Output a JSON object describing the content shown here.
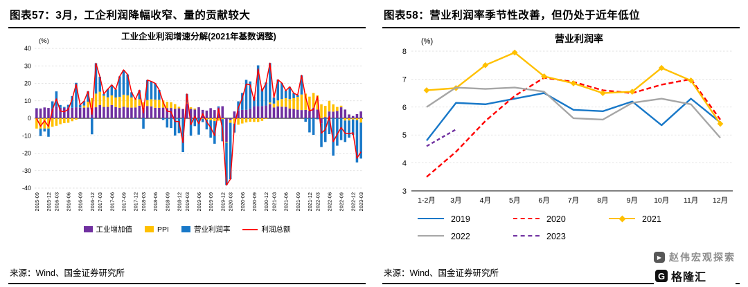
{
  "left_panel": {
    "figure_title": "图表57：3月，工企利润降幅收窄、量的贡献较大",
    "source": "来源：Wind、国金证券研究所"
  },
  "right_panel": {
    "figure_title": "图表58：营业利润率季节性改善，但仍处于近年低位",
    "source": "来源：Wind、国金证券研究所",
    "watermark": {
      "text": "赵伟宏观探索",
      "logo_letter": "G",
      "logo_text": "格隆汇"
    }
  },
  "chart_data": [
    {
      "type": "bar",
      "stacked": true,
      "title": "工业企业利润增速分解(2021年基数调整)",
      "unit": "(%)",
      "ylim": [
        -40,
        40
      ],
      "ytick_step": 10,
      "yticks": [
        -40,
        -30,
        -20,
        -10,
        0,
        10,
        20,
        30,
        40
      ],
      "grid": true,
      "legend_position": "bottom",
      "x": [
        "2015-09",
        "2015-10",
        "2015-11",
        "2015-12",
        "2016-02",
        "2016-03",
        "2016-04",
        "2016-05",
        "2016-06",
        "2016-07",
        "2016-08",
        "2016-09",
        "2016-10",
        "2016-11",
        "2016-12",
        "2017-02",
        "2017-03",
        "2017-04",
        "2017-05",
        "2017-06",
        "2017-07",
        "2017-08",
        "2017-09",
        "2017-10",
        "2017-11",
        "2017-12",
        "2018-02",
        "2018-03",
        "2018-04",
        "2018-05",
        "2018-06",
        "2018-07",
        "2018-08",
        "2018-09",
        "2018-10",
        "2018-11",
        "2018-12",
        "2019-02",
        "2019-03",
        "2019-04",
        "2019-05",
        "2019-06",
        "2019-07",
        "2019-08",
        "2019-09",
        "2019-10",
        "2019-11",
        "2019-12",
        "2020-02",
        "2020-03",
        "2020-04",
        "2020-05",
        "2020-06",
        "2020-07",
        "2020-08",
        "2020-09",
        "2020-10",
        "2020-11",
        "2020-12",
        "2021-02",
        "2021-03",
        "2021-04",
        "2021-05",
        "2021-06",
        "2021-07",
        "2021-08",
        "2021-09",
        "2021-10",
        "2021-11",
        "2021-12",
        "2022-02",
        "2022-03",
        "2022-04",
        "2022-05",
        "2022-06",
        "2022-07",
        "2022-08",
        "2022-09",
        "2022-10",
        "2022-11",
        "2022-12",
        "2023-02",
        "2023-03"
      ],
      "xticks": [
        "2015-09",
        "2015-12",
        "2016-03",
        "2016-06",
        "2016-09",
        "2016-12",
        "2017-03",
        "2017-06",
        "2017-09",
        "2017-12",
        "2018-03",
        "2018-06",
        "2018-09",
        "2018-12",
        "2019-03",
        "2019-06",
        "2019-09",
        "2019-12",
        "2020-03",
        "2020-06",
        "2020-09",
        "2020-12",
        "2021-03",
        "2021-06",
        "2021-09",
        "2021-12",
        "2022-03",
        "2022-06",
        "2022-09",
        "2022-12",
        "2023-03"
      ],
      "series": [
        {
          "name": "工业增加值",
          "type": "bar",
          "color": "#7030A0",
          "values": [
            5.7,
            5.6,
            6.2,
            5.9,
            5.4,
            6.8,
            6.0,
            6.0,
            6.2,
            6.0,
            6.3,
            6.1,
            6.1,
            6.2,
            6.0,
            6.3,
            7.6,
            6.5,
            6.5,
            7.6,
            6.4,
            6.0,
            6.6,
            6.2,
            6.1,
            6.2,
            7.2,
            6.0,
            7.0,
            6.8,
            6.0,
            6.0,
            6.1,
            5.8,
            5.9,
            5.4,
            5.7,
            5.3,
            8.5,
            5.4,
            5.0,
            6.3,
            4.8,
            4.4,
            5.8,
            4.7,
            6.2,
            6.9,
            -13.5,
            -1.1,
            3.9,
            4.4,
            4.8,
            4.8,
            5.6,
            6.9,
            6.9,
            7.0,
            7.3,
            8.1,
            6.2,
            6.8,
            6.6,
            6.5,
            5.6,
            5.3,
            4.9,
            4.7,
            4.8,
            4.3,
            5.9,
            5.0,
            -2.9,
            0.7,
            3.9,
            3.8,
            4.2,
            6.3,
            5.0,
            2.2,
            1.3,
            2.4,
            3.9
          ]
        },
        {
          "name": "PPI",
          "type": "bar",
          "color": "#FFC000",
          "values": [
            -5.9,
            -5.9,
            -5.9,
            -5.9,
            -4.9,
            -4.3,
            -3.4,
            -2.8,
            -2.6,
            -1.7,
            -0.8,
            0.1,
            1.2,
            3.3,
            5.5,
            7.8,
            7.6,
            6.4,
            5.5,
            5.5,
            5.5,
            6.3,
            6.9,
            6.9,
            5.8,
            4.9,
            3.7,
            3.1,
            3.4,
            4.1,
            4.7,
            4.6,
            4.1,
            3.6,
            3.3,
            2.7,
            0.9,
            0.1,
            0.4,
            0.9,
            0.6,
            0.0,
            -0.3,
            -0.8,
            -1.2,
            -1.6,
            -1.4,
            -0.5,
            -0.4,
            -1.5,
            -3.1,
            -3.7,
            -3.0,
            -2.4,
            -2.0,
            -2.1,
            -2.1,
            -1.5,
            -0.4,
            0.9,
            2.2,
            3.4,
            4.4,
            5.0,
            5.4,
            6.2,
            7.3,
            8.9,
            9.3,
            8.1,
            8.6,
            8.1,
            8.0,
            6.4,
            6.1,
            4.2,
            2.3,
            0.9,
            -1.3,
            -1.3,
            -0.7,
            -1.1,
            -2.5
          ]
        },
        {
          "name": "营业利润率",
          "type": "bar",
          "color": "#1878C8",
          "values": [
            0.1,
            -4.3,
            -1.7,
            -4.7,
            4.3,
            8.6,
            1.6,
            0.5,
            1.5,
            6.7,
            14.0,
            1.5,
            2.5,
            5.9,
            -9.2,
            17.4,
            8.6,
            1.1,
            4.7,
            6.0,
            4.6,
            11.7,
            14.2,
            12.0,
            3.0,
            -0.3,
            5.2,
            -6.0,
            11.5,
            10.2,
            9.3,
            5.6,
            -1.0,
            -5.3,
            -5.6,
            -9.9,
            -8.5,
            -19.4,
            5.0,
            -10.0,
            -4.5,
            -9.4,
            -1.9,
            -5.6,
            -9.9,
            -13.0,
            0.6,
            -12.7,
            -24.4,
            -32.3,
            -5.1,
            5.3,
            9.7,
            17.2,
            15.5,
            5.3,
            23.4,
            10.0,
            13.2,
            22.6,
            3.4,
            11.9,
            9.2,
            4.3,
            7.0,
            2.9,
            1.1,
            11.0,
            -2.0,
            -8.1,
            -9.5,
            -0.6,
            -13.6,
            -13.6,
            -9.1,
            -21.4,
            -15.7,
            -12.5,
            -12.3,
            -9.8,
            -8.9,
            -24.2,
            -20.6
          ]
        },
        {
          "name": "利润总额",
          "type": "line",
          "color": "#FF0000",
          "values": [
            -0.1,
            -4.6,
            -1.4,
            -4.7,
            4.8,
            11.1,
            4.2,
            3.7,
            5.1,
            11.0,
            19.5,
            7.7,
            9.8,
            15.4,
            2.3,
            31.5,
            23.8,
            14.0,
            16.7,
            19.1,
            16.5,
            24.0,
            27.7,
            25.1,
            14.9,
            10.8,
            16.1,
            3.1,
            21.9,
            21.1,
            20.0,
            16.2,
            9.2,
            4.1,
            3.6,
            -1.8,
            -1.9,
            -14.0,
            13.9,
            -3.7,
            1.1,
            -3.1,
            2.6,
            -2.0,
            -5.3,
            -9.9,
            5.4,
            -6.3,
            -38.3,
            -34.9,
            -4.3,
            6.0,
            11.5,
            19.6,
            19.1,
            10.1,
            28.2,
            15.5,
            20.1,
            31.6,
            11.8,
            22.1,
            20.2,
            15.8,
            18.0,
            14.4,
            13.3,
            24.6,
            12.1,
            4.3,
            5.0,
            12.5,
            -8.5,
            -6.5,
            0.9,
            -13.4,
            -9.2,
            -5.3,
            -8.6,
            -8.9,
            -8.3,
            -22.9,
            -19.2
          ]
        }
      ]
    },
    {
      "type": "line",
      "title": "营业利润率",
      "unit": "(%)",
      "ylim": [
        3,
        8
      ],
      "yticks": [
        3,
        4,
        5,
        6,
        7,
        8
      ],
      "grid": true,
      "legend_position": "bottom",
      "categories": [
        "1-2月",
        "3月",
        "4月",
        "5月",
        "6月",
        "7月",
        "8月",
        "9月",
        "10月",
        "11月",
        "12月"
      ],
      "series": [
        {
          "name": "2019",
          "color": "#1878C8",
          "style": "solid",
          "values": [
            4.8,
            6.15,
            6.1,
            6.3,
            6.5,
            5.9,
            5.85,
            6.2,
            5.35,
            6.3,
            5.45
          ]
        },
        {
          "name": "2020",
          "color": "#FF0000",
          "style": "dashed",
          "dash": "7 4",
          "values": [
            3.5,
            4.4,
            5.5,
            6.4,
            7.05,
            6.9,
            6.6,
            6.5,
            6.8,
            7.0,
            5.55
          ]
        },
        {
          "name": "2021",
          "color": "#FFC000",
          "style": "solid",
          "marker": "diamond",
          "values": [
            6.6,
            6.68,
            7.5,
            7.95,
            7.1,
            6.85,
            6.5,
            6.55,
            7.4,
            6.95,
            5.4
          ]
        },
        {
          "name": "2022",
          "color": "#A6A6A6",
          "style": "solid",
          "values": [
            6.0,
            6.7,
            6.65,
            6.7,
            6.55,
            5.6,
            5.55,
            6.15,
            6.3,
            6.1,
            4.9
          ]
        },
        {
          "name": "2023",
          "color": "#7030A0",
          "style": "dashed",
          "dash": "5 3.5",
          "values": [
            4.6,
            5.2,
            null,
            null,
            null,
            null,
            null,
            null,
            null,
            null,
            null
          ]
        }
      ],
      "legend_rows": [
        [
          "2019",
          "2020",
          "2021"
        ],
        [
          "2022",
          "2023"
        ]
      ]
    }
  ]
}
